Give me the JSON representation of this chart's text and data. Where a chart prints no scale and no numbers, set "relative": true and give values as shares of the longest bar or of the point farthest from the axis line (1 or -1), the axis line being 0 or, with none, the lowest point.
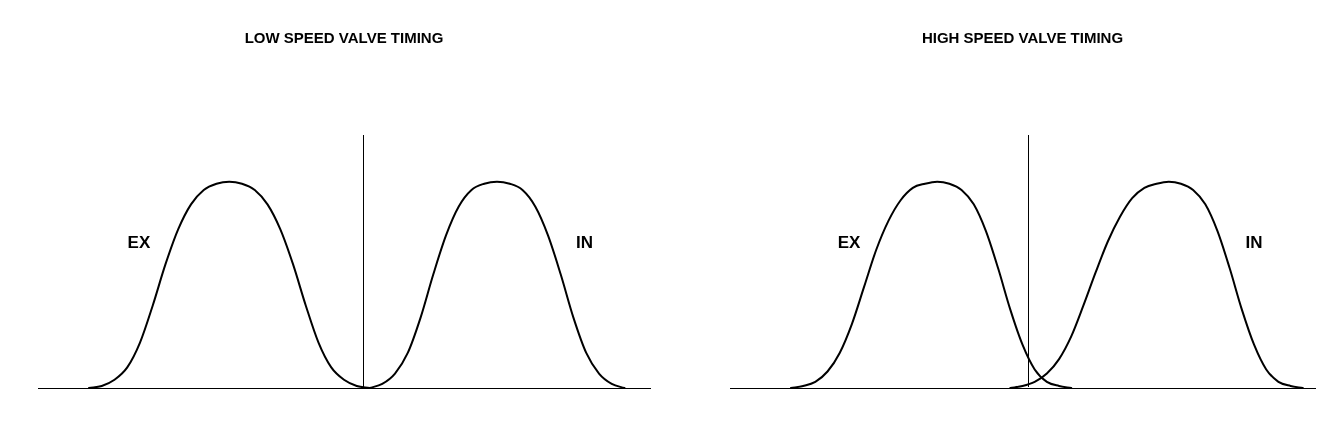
{
  "chart_data": [
    {
      "type": "line",
      "title": "LOW SPEED VALVE TIMING",
      "relative": true,
      "tick_labels": false,
      "grid": false,
      "legend": false,
      "marker": "none",
      "line_style": "solid",
      "categories": [
        null,
        null,
        null,
        null,
        null,
        null,
        null,
        null,
        null,
        null,
        null,
        null,
        null,
        null,
        null,
        null,
        null,
        null,
        null,
        null,
        null,
        null,
        null,
        null,
        null,
        null,
        null,
        null,
        null,
        null,
        null,
        null,
        null,
        null,
        null,
        null,
        null,
        null,
        null,
        null,
        null,
        null,
        null,
        null,
        null,
        null,
        null,
        null,
        null
      ],
      "series": [
        {
          "name": "EX",
          "color": "#000000",
          "values": [
            null,
            null,
            null,
            null,
            0,
            0.01,
            0.04,
            0.1,
            0.22,
            0.4,
            0.6,
            0.77,
            0.89,
            0.96,
            0.99,
            1,
            0.99,
            0.96,
            0.89,
            0.77,
            0.6,
            0.4,
            0.22,
            0.1,
            0.04,
            0.01,
            0,
            null,
            null,
            null,
            null,
            null,
            null,
            null,
            null,
            null,
            null,
            null,
            null,
            null,
            null,
            null,
            null,
            null,
            null,
            null,
            null,
            null,
            null
          ]
        },
        {
          "name": "IN",
          "color": "#000000",
          "values": [
            null,
            null,
            null,
            null,
            null,
            null,
            null,
            null,
            null,
            null,
            null,
            null,
            null,
            null,
            null,
            null,
            null,
            null,
            null,
            null,
            null,
            null,
            null,
            null,
            null,
            null,
            0,
            0.02,
            0.07,
            0.17,
            0.34,
            0.55,
            0.74,
            0.88,
            0.96,
            0.99,
            1,
            0.99,
            0.96,
            0.88,
            0.74,
            0.55,
            0.34,
            0.17,
            0.07,
            0.02,
            0,
            null,
            null
          ]
        }
      ]
    },
    {
      "type": "line",
      "title": "HIGH SPEED VALVE TIMING",
      "relative": true,
      "tick_labels": false,
      "grid": false,
      "legend": false,
      "marker": "none",
      "line_style": "solid",
      "categories": [
        null,
        null,
        null,
        null,
        null,
        null,
        null,
        null,
        null,
        null,
        null,
        null,
        null,
        null,
        null,
        null,
        null,
        null,
        null,
        null,
        null,
        null,
        null,
        null,
        null,
        null,
        null,
        null,
        null,
        null,
        null,
        null,
        null,
        null,
        null,
        null,
        null,
        null,
        null,
        null,
        null,
        null,
        null,
        null,
        null,
        null,
        null,
        null,
        null
      ],
      "series": [
        {
          "name": "EX",
          "color": "#000000",
          "values": [
            null,
            null,
            null,
            null,
            null,
            0,
            0.01,
            0.03,
            0.08,
            0.17,
            0.31,
            0.49,
            0.67,
            0.81,
            0.91,
            0.97,
            0.99,
            1,
            0.99,
            0.96,
            0.89,
            0.76,
            0.58,
            0.38,
            0.21,
            0.09,
            0.03,
            0.01,
            0,
            null,
            null,
            null,
            null,
            null,
            null,
            null,
            null,
            null,
            null,
            null,
            null,
            null,
            null,
            null,
            null,
            null,
            null,
            null,
            null
          ]
        },
        {
          "name": "IN",
          "color": "#000000",
          "values": [
            null,
            null,
            null,
            null,
            null,
            null,
            null,
            null,
            null,
            null,
            null,
            null,
            null,
            null,
            null,
            null,
            null,
            null,
            null,
            null,
            null,
            null,
            null,
            0,
            0.01,
            0.03,
            0.07,
            0.14,
            0.25,
            0.4,
            0.56,
            0.71,
            0.83,
            0.92,
            0.97,
            0.99,
            1,
            0.99,
            0.96,
            0.89,
            0.76,
            0.58,
            0.38,
            0.21,
            0.09,
            0.03,
            0.01,
            0,
            null
          ]
        }
      ]
    }
  ]
}
